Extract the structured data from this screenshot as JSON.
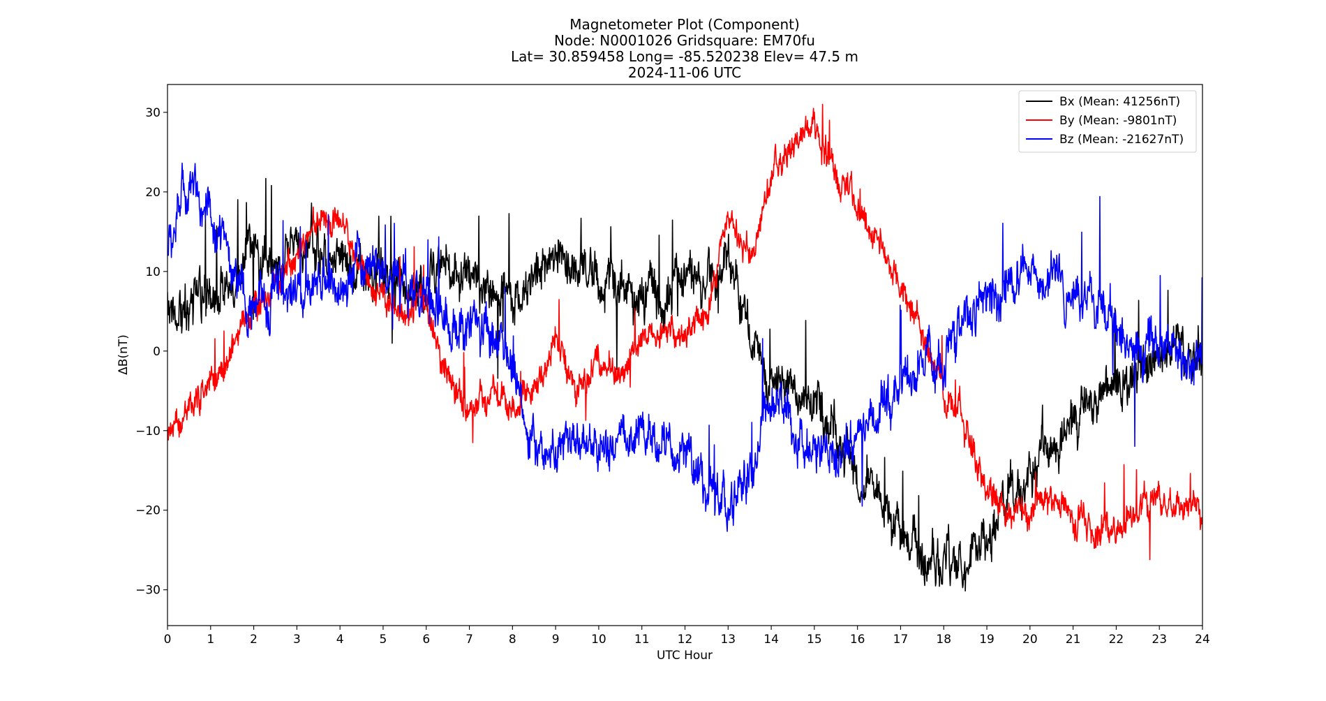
{
  "title_lines": [
    "Magnetometer Plot (Component)",
    "Node:  N0001026     Gridsquare:  EM70fu",
    "Lat= 30.859458    Long= -85.520238    Elev= 47.5 m",
    "2024-11-06  UTC"
  ],
  "chart_data": {
    "type": "line",
    "title": "Magnetometer Plot (Component)",
    "subtitle": [
      "Node:  N0001026     Gridsquare:  EM70fu",
      "Lat= 30.859458    Long= -85.520238    Elev= 47.5 m",
      "2024-11-06  UTC"
    ],
    "xlabel": "UTC Hour",
    "ylabel": "ΔB(nT)",
    "xlim": [
      0,
      24
    ],
    "ylim": [
      -34.5,
      33.5
    ],
    "xticks": [
      0,
      1,
      2,
      3,
      4,
      5,
      6,
      7,
      8,
      9,
      10,
      11,
      12,
      13,
      14,
      15,
      16,
      17,
      18,
      19,
      20,
      21,
      22,
      23,
      24
    ],
    "xtick_labels": [
      "0",
      "1",
      "2",
      "3",
      "4",
      "5",
      "6",
      "7",
      "8",
      "9",
      "10",
      "11",
      "12",
      "13",
      "14",
      "15",
      "16",
      "17",
      "18",
      "19",
      "20",
      "21",
      "22",
      "23",
      "24"
    ],
    "yticks": [
      -30,
      -20,
      -10,
      0,
      10,
      20,
      30
    ],
    "ytick_labels": [
      "−30",
      "−20",
      "−10",
      "0",
      "10",
      "20",
      "30"
    ],
    "grid": false,
    "legend_position": "top-right",
    "series": [
      {
        "name": "Bx (Mean: 41256nT)",
        "color": "#000000",
        "x": [
          0,
          0.5,
          1,
          1.5,
          2,
          2.5,
          3,
          3.5,
          4,
          4.5,
          5,
          5.5,
          6,
          6.5,
          7,
          7.5,
          8,
          8.5,
          9,
          9.5,
          10,
          10.5,
          11,
          11.5,
          12,
          12.5,
          13,
          13.5,
          14,
          14.5,
          15,
          15.5,
          16,
          16.5,
          17,
          17.5,
          18,
          18.5,
          19,
          19.5,
          20,
          20.5,
          21,
          21.5,
          22,
          22.5,
          23,
          23.5,
          24
        ],
        "y": [
          6,
          5,
          8,
          9,
          12,
          11,
          14,
          13,
          12,
          10,
          9,
          10,
          8,
          11,
          9,
          8,
          7,
          10,
          12,
          11,
          9,
          8,
          6,
          7,
          8,
          9,
          10,
          3,
          -3,
          -5,
          -7,
          -10,
          -14,
          -18,
          -22,
          -25,
          -27,
          -26,
          -24,
          -18,
          -15,
          -12,
          -8,
          -6,
          -5,
          -3,
          0,
          1,
          0
        ],
        "noise": 3.0
      },
      {
        "name": "By (Mean: -9801nT)",
        "color": "#ff0000",
        "x": [
          0,
          0.5,
          1,
          1.5,
          2,
          2.5,
          3,
          3.5,
          4,
          4.5,
          5,
          5.5,
          6,
          6.5,
          7,
          7.5,
          8,
          8.5,
          9,
          9.5,
          10,
          10.5,
          11,
          11.5,
          12,
          12.5,
          13,
          13.5,
          14,
          14.5,
          15,
          15.5,
          16,
          16.5,
          17,
          17.5,
          18,
          18.5,
          19,
          19.5,
          20,
          20.5,
          21,
          21.5,
          22,
          22.5,
          23,
          23.5,
          24
        ],
        "y": [
          -10,
          -8,
          -4,
          0,
          5,
          8,
          12,
          16,
          17,
          10,
          6,
          5,
          5,
          -3,
          -8,
          -5,
          -8,
          -5,
          0,
          -5,
          -1,
          -3,
          3,
          2,
          1,
          5,
          18,
          10,
          23,
          26,
          28,
          22,
          18,
          14,
          8,
          2,
          -5,
          -10,
          -17,
          -20,
          -20,
          -18,
          -21,
          -23,
          -22,
          -20,
          -19,
          -20,
          -21
        ],
        "noise": 2.0
      },
      {
        "name": "Bz (Mean: -21627nT)",
        "color": "#0000ff",
        "x": [
          0,
          0.5,
          1,
          1.5,
          2,
          2.5,
          3,
          3.5,
          4,
          4.5,
          5,
          5.5,
          6,
          6.5,
          7,
          7.5,
          8,
          8.5,
          9,
          9.5,
          10,
          10.5,
          11,
          11.5,
          12,
          12.5,
          13,
          13.5,
          14,
          14.5,
          15,
          15.5,
          16,
          16.5,
          17,
          17.5,
          18,
          18.5,
          19,
          19.5,
          20,
          20.5,
          21,
          21.5,
          22,
          22.5,
          23,
          23.5,
          24
        ],
        "y": [
          12,
          22,
          16,
          10,
          5,
          8,
          7,
          9,
          9,
          10,
          11,
          9,
          7,
          3,
          2,
          3,
          -2,
          -12,
          -14,
          -10,
          -12,
          -11,
          -13,
          -11,
          -14,
          -18,
          -20,
          -15,
          -5,
          -10,
          -13,
          -14,
          -10,
          -8,
          -4,
          -2,
          -1,
          4,
          6,
          8,
          12,
          8,
          7,
          6,
          4,
          2,
          0,
          -1,
          -2
        ],
        "noise": 3.0
      }
    ]
  }
}
